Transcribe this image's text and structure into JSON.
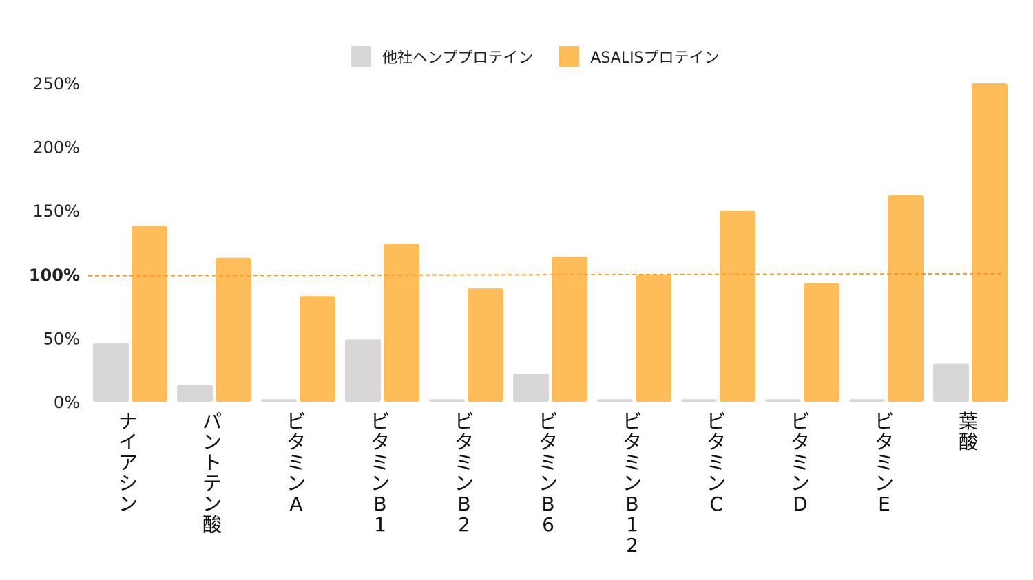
{
  "colors": {
    "series_other": "#d9d6d7",
    "series_asalis": "#ffbd59",
    "reference_line": "#f59a23",
    "reference_label": "#f59a23"
  },
  "chart_data": {
    "type": "bar",
    "categories": [
      "ナイアシン",
      "パントテン酸",
      "ビタミンA",
      "ビタミンB1",
      "ビタミンB2",
      "ビタミンB6",
      "ビタミンB12",
      "ビタミンC",
      "ビタミンD",
      "ビタミンE",
      "葉酸"
    ],
    "series": [
      {
        "name": "他社ヘンププロテイン",
        "values": [
          46,
          13,
          2,
          49,
          2,
          22,
          2,
          2,
          2,
          2,
          30
        ]
      },
      {
        "name": "ASALISプロテイン",
        "values": [
          138,
          113,
          83,
          124,
          89,
          114,
          100,
          150,
          93,
          162,
          250
        ]
      }
    ],
    "ylim": [
      0,
      250
    ],
    "yticks": [
      "0%",
      "50%",
      "100%",
      "150%",
      "200%",
      "250%"
    ],
    "reference_line": {
      "value": 100,
      "label": "100%"
    },
    "legend_position": "top-center",
    "grid": false
  }
}
